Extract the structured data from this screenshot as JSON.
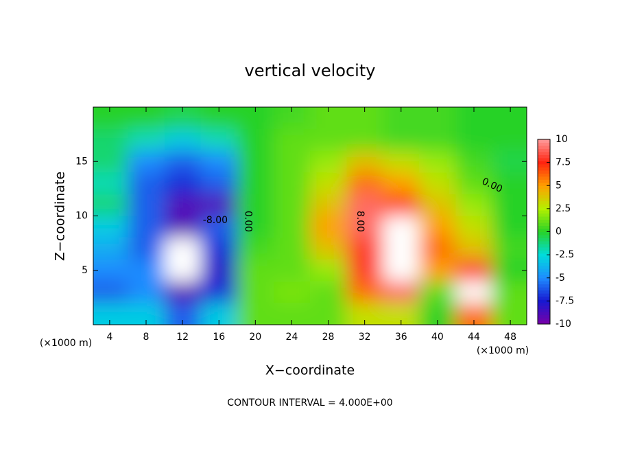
{
  "chart_data": {
    "type": "contour",
    "title": "vertical velocity",
    "x_label": "X−coordinate",
    "y_label": "Z−coordinate",
    "x_unit_labels": [
      "(×1000 m)",
      "(×1000 m)"
    ],
    "footer": "CONTOUR INTERVAL = 4.000E+00",
    "xlim": [
      2.2,
      49.8
    ],
    "ylim": [
      0,
      20
    ],
    "xticks": [
      4,
      8,
      12,
      16,
      20,
      24,
      28,
      32,
      36,
      40,
      44,
      48
    ],
    "yticks": [
      5,
      10,
      15
    ],
    "x": [
      4,
      8,
      12,
      16,
      20,
      24,
      28,
      32,
      36,
      40,
      44,
      48
    ],
    "z": [
      1,
      3,
      5,
      7,
      9,
      11,
      13,
      15,
      17,
      19
    ],
    "values": [
      [
        -3,
        -3,
        -6,
        -3,
        1,
        1,
        1,
        3,
        3,
        0,
        6,
        1
      ],
      [
        -6,
        -5,
        -9,
        -7,
        1,
        1.5,
        1,
        6,
        9,
        1,
        11,
        1
      ],
      [
        -5,
        -5,
        11,
        -8,
        1,
        1,
        2,
        8,
        12,
        5,
        8,
        0
      ],
      [
        -4,
        -6,
        12,
        -7,
        0.5,
        1,
        4,
        8,
        12,
        6,
        4,
        0.5
      ],
      [
        -3,
        -6,
        -9,
        -6,
        0,
        1,
        5,
        9,
        12,
        5,
        3,
        0
      ],
      [
        -1,
        -6,
        -9,
        -9,
        0,
        1,
        4,
        9,
        7,
        4,
        2,
        0
      ],
      [
        -2,
        -6,
        -7,
        -6,
        0,
        1,
        3,
        6,
        5,
        3,
        1,
        0
      ],
      [
        -1,
        -5,
        -6,
        -5,
        0,
        1,
        2,
        4,
        3,
        2,
        0.5,
        -0.5
      ],
      [
        -1,
        -2,
        -3,
        -2,
        0,
        1,
        1,
        1,
        0.5,
        0.5,
        0,
        0
      ],
      [
        0,
        0,
        -0.5,
        0,
        0,
        0.5,
        1,
        1,
        0.5,
        0.5,
        0,
        0
      ]
    ],
    "contour_labels": [
      "0.00",
      "-8.00",
      "8.00",
      "0.00"
    ],
    "colorbar": {
      "ticks": [
        -10,
        -7.5,
        -5,
        -2.5,
        0,
        2.5,
        5,
        7.5,
        10
      ],
      "colors": [
        "#7a00a8",
        "#1818d0",
        "#1e8cff",
        "#00dcdc",
        "#28d228",
        "#b4f000",
        "#ffa000",
        "#ff2410",
        "#ff9a9a"
      ],
      "over_color": "#ffffff"
    }
  }
}
